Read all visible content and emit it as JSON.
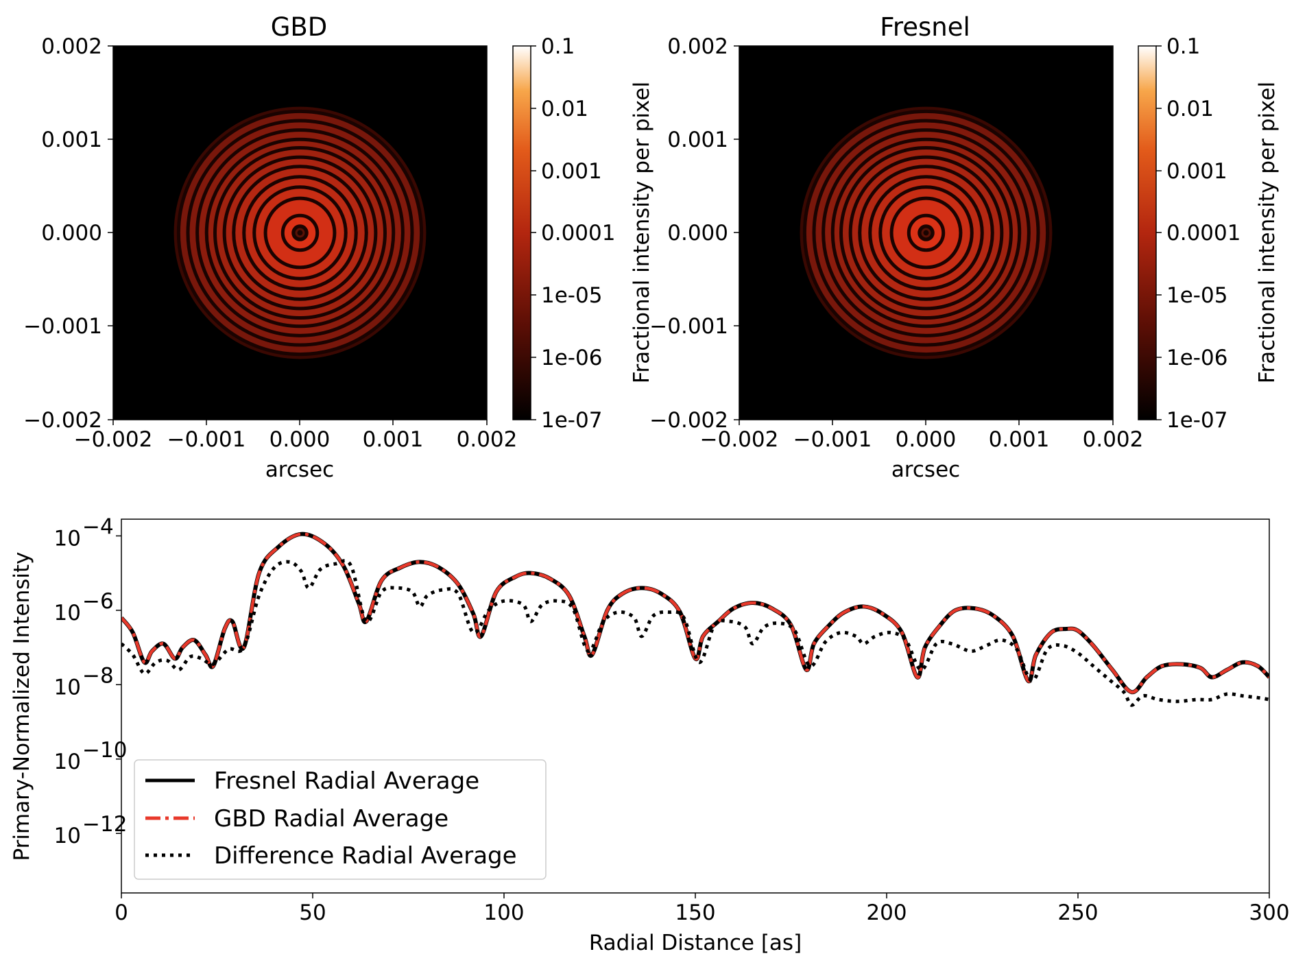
{
  "chart_data": [
    {
      "type": "heatmap",
      "title": "GBD",
      "xlabel": "arcsec",
      "ylabel": "",
      "xlim": [
        -0.002,
        0.002
      ],
      "ylim": [
        -0.002,
        0.002
      ],
      "x_ticks": [
        "−0.002",
        "−0.001",
        "0.000",
        "0.001",
        "0.002"
      ],
      "y_ticks": [
        "0.002",
        "0.001",
        "0.000",
        "−0.001",
        "−0.002"
      ],
      "colorbar": {
        "label": "Fractional intensity per pixel",
        "scale": "log",
        "range": [
          1e-07,
          0.1
        ],
        "ticks": [
          "0.1",
          "0.01",
          "0.001",
          "0.0001",
          "1e-05",
          "1e-06",
          "1e-07"
        ]
      },
      "colormap": "gist_heat",
      "pattern": "concentric Airy rings",
      "ring_radii_arcsec": [
        0.000185,
        0.00037,
        0.00049,
        0.0006,
        0.00071,
        0.00081,
        0.00091,
        0.001,
        0.0011,
        0.0012,
        0.0013
      ]
    },
    {
      "type": "heatmap",
      "title": "Fresnel",
      "xlabel": "arcsec",
      "ylabel": "",
      "xlim": [
        -0.002,
        0.002
      ],
      "ylim": [
        -0.002,
        0.002
      ],
      "x_ticks": [
        "−0.002",
        "−0.001",
        "0.000",
        "0.001",
        "0.002"
      ],
      "y_ticks": [
        "0.002",
        "0.001",
        "0.000",
        "−0.001",
        "−0.002"
      ],
      "colorbar": {
        "label": "Fractional intensity per pixel",
        "scale": "log",
        "range": [
          1e-07,
          0.1
        ],
        "ticks": [
          "0.1",
          "0.01",
          "0.001",
          "0.0001",
          "1e-05",
          "1e-06",
          "1e-07"
        ]
      },
      "colormap": "gist_heat",
      "pattern": "concentric Airy rings",
      "ring_radii_arcsec": [
        0.000185,
        0.00037,
        0.00049,
        0.0006,
        0.00071,
        0.00081,
        0.00091,
        0.001,
        0.0011,
        0.0012,
        0.0013
      ]
    },
    {
      "type": "line",
      "title": "",
      "xlabel": "Radial Distance [as]",
      "ylabel": "Primary-Normalized Intensity",
      "xlim": [
        0,
        300
      ],
      "ylim_log10": [
        -13.6,
        -3.55
      ],
      "yscale": "log",
      "x_ticks": [
        "0",
        "50",
        "100",
        "150",
        "200",
        "250",
        "300"
      ],
      "y_tick_bases": [
        "10",
        "10",
        "10",
        "10",
        "10"
      ],
      "y_tick_exponents": [
        "−4",
        "−6",
        "−8",
        "−10",
        "−12"
      ],
      "y_tick_values_log10": [
        -4,
        -6,
        -8,
        -10,
        -12
      ],
      "legend": "lower-left",
      "legend_entries": [
        "Fresnel Radial Average",
        "GBD Radial Average",
        "Difference Radial Average"
      ],
      "series_styles": [
        {
          "color": "#000000",
          "dash": "solid"
        },
        {
          "color": "#e8392b",
          "dash": "dashdot"
        },
        {
          "color": "#000000",
          "dash": "dotted"
        }
      ],
      "series": [
        {
          "name": "Fresnel Radial Average",
          "x": [
            0,
            3,
            6,
            8,
            11,
            14,
            16,
            19,
            22,
            24,
            27,
            29,
            32,
            36,
            41,
            47,
            53,
            58,
            62,
            64,
            68,
            73,
            78,
            83,
            88,
            92,
            94,
            98,
            103,
            107,
            112,
            117,
            121,
            123,
            127,
            131,
            136,
            141,
            146,
            150,
            152,
            156,
            160,
            165,
            170,
            175,
            179,
            181,
            185,
            189,
            194,
            199,
            204,
            208,
            210,
            214,
            218,
            223,
            228,
            233,
            237,
            239,
            243,
            247,
            250,
            254,
            259,
            264,
            268,
            272,
            277,
            282,
            285,
            289,
            293,
            297,
            300
          ],
          "y_log10": [
            -6.2,
            -6.6,
            -7.4,
            -7.1,
            -6.9,
            -7.3,
            -7.0,
            -6.8,
            -7.2,
            -7.5,
            -6.5,
            -6.3,
            -7.0,
            -5.0,
            -4.3,
            -3.95,
            -4.2,
            -4.8,
            -5.8,
            -6.3,
            -5.2,
            -4.85,
            -4.7,
            -4.85,
            -5.3,
            -6.1,
            -6.7,
            -5.5,
            -5.1,
            -5.0,
            -5.15,
            -5.6,
            -6.7,
            -7.2,
            -6.0,
            -5.55,
            -5.4,
            -5.55,
            -6.05,
            -7.3,
            -6.7,
            -6.3,
            -5.95,
            -5.8,
            -5.95,
            -6.4,
            -7.6,
            -6.9,
            -6.4,
            -6.05,
            -5.9,
            -6.1,
            -6.6,
            -7.8,
            -7.0,
            -6.4,
            -6.0,
            -5.95,
            -6.15,
            -6.7,
            -7.9,
            -7.2,
            -6.6,
            -6.5,
            -6.55,
            -6.95,
            -7.6,
            -8.2,
            -7.8,
            -7.5,
            -7.45,
            -7.55,
            -7.8,
            -7.6,
            -7.4,
            -7.5,
            -7.8
          ]
        },
        {
          "name": "GBD Radial Average",
          "x": [
            0,
            3,
            6,
            8,
            11,
            14,
            16,
            19,
            22,
            24,
            27,
            29,
            32,
            36,
            41,
            47,
            53,
            58,
            62,
            64,
            68,
            73,
            78,
            83,
            88,
            92,
            94,
            98,
            103,
            107,
            112,
            117,
            121,
            123,
            127,
            131,
            136,
            141,
            146,
            150,
            152,
            156,
            160,
            165,
            170,
            175,
            179,
            181,
            185,
            189,
            194,
            199,
            204,
            208,
            210,
            214,
            218,
            223,
            228,
            233,
            237,
            239,
            243,
            247,
            250,
            254,
            259,
            264,
            268,
            272,
            277,
            282,
            285,
            289,
            293,
            297,
            300
          ],
          "y_log10": [
            -6.2,
            -6.6,
            -7.4,
            -7.1,
            -6.9,
            -7.3,
            -7.0,
            -6.8,
            -7.2,
            -7.5,
            -6.5,
            -6.3,
            -7.0,
            -5.0,
            -4.3,
            -3.95,
            -4.2,
            -4.8,
            -5.8,
            -6.3,
            -5.2,
            -4.85,
            -4.7,
            -4.85,
            -5.3,
            -6.1,
            -6.7,
            -5.5,
            -5.1,
            -5.0,
            -5.15,
            -5.6,
            -6.7,
            -7.2,
            -6.0,
            -5.55,
            -5.4,
            -5.55,
            -6.05,
            -7.3,
            -6.7,
            -6.3,
            -5.95,
            -5.8,
            -5.95,
            -6.4,
            -7.6,
            -6.9,
            -6.4,
            -6.05,
            -5.9,
            -6.1,
            -6.6,
            -7.8,
            -7.0,
            -6.4,
            -6.0,
            -5.95,
            -6.15,
            -6.7,
            -7.9,
            -7.2,
            -6.6,
            -6.5,
            -6.55,
            -6.95,
            -7.6,
            -8.2,
            -7.8,
            -7.5,
            -7.45,
            -7.55,
            -7.8,
            -7.6,
            -7.4,
            -7.5,
            -7.8
          ]
        },
        {
          "name": "Difference Radial Average",
          "x": [
            0,
            3,
            6,
            9,
            12,
            15,
            18,
            21,
            24,
            28,
            32,
            36,
            40,
            44,
            47,
            49,
            52,
            56,
            60,
            64,
            68,
            72,
            76,
            78,
            80,
            84,
            88,
            92,
            96,
            100,
            105,
            107,
            110,
            114,
            118,
            122,
            126,
            130,
            134,
            136,
            139,
            143,
            147,
            151,
            155,
            159,
            163,
            165,
            168,
            172,
            176,
            180,
            184,
            188,
            192,
            194,
            197,
            201,
            205,
            209,
            213,
            217,
            222,
            226,
            230,
            234,
            238,
            242,
            246,
            250,
            254,
            258,
            262,
            264,
            267,
            271,
            276,
            281,
            285,
            289,
            293,
            297,
            300
          ],
          "y_log10": [
            -6.9,
            -7.2,
            -7.7,
            -7.4,
            -7.35,
            -7.6,
            -7.25,
            -7.3,
            -7.45,
            -7.05,
            -7.0,
            -5.6,
            -4.85,
            -4.7,
            -4.95,
            -5.4,
            -4.9,
            -4.75,
            -4.8,
            -6.3,
            -5.5,
            -5.4,
            -5.5,
            -5.9,
            -5.6,
            -5.45,
            -5.55,
            -6.6,
            -6.0,
            -5.75,
            -5.85,
            -6.3,
            -5.85,
            -5.75,
            -5.95,
            -7.1,
            -6.3,
            -6.05,
            -6.2,
            -6.7,
            -6.15,
            -6.05,
            -6.2,
            -7.4,
            -6.4,
            -6.3,
            -6.45,
            -6.9,
            -6.45,
            -6.35,
            -6.55,
            -7.5,
            -6.85,
            -6.6,
            -6.7,
            -6.9,
            -6.7,
            -6.6,
            -6.8,
            -7.6,
            -6.9,
            -6.9,
            -7.1,
            -6.95,
            -6.8,
            -7.05,
            -7.9,
            -7.05,
            -6.95,
            -7.15,
            -7.5,
            -7.85,
            -8.2,
            -8.55,
            -8.3,
            -8.4,
            -8.45,
            -8.4,
            -8.4,
            -8.25,
            -8.3,
            -8.35,
            -8.4
          ]
        }
      ]
    }
  ]
}
